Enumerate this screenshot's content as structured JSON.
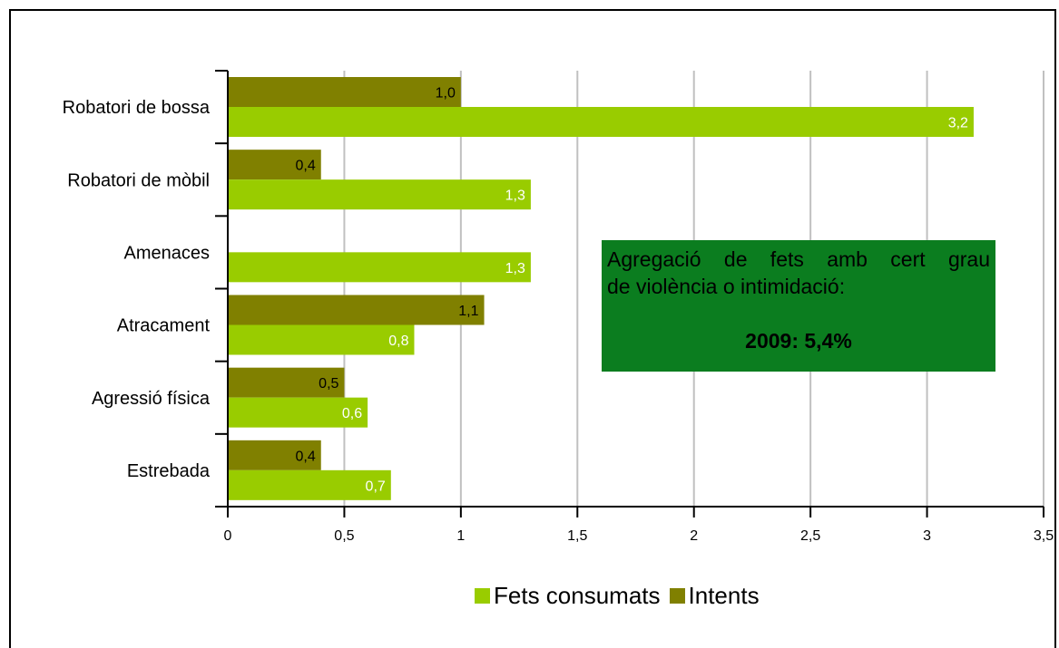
{
  "chart_data": {
    "type": "bar",
    "orientation": "horizontal",
    "categories": [
      "Robatori de bossa",
      "Robatori de mòbil",
      "Amenaces",
      "Atracament",
      "Agressió física",
      "Estrebada"
    ],
    "series": [
      {
        "name": "Intents",
        "color": "#808000",
        "values": [
          1.0,
          0.4,
          null,
          1.1,
          0.5,
          0.4
        ],
        "labels": [
          "1,0",
          "0,4",
          "",
          "1,1",
          "0,5",
          "0,4"
        ]
      },
      {
        "name": "Fets consumats",
        "color": "#99cc00",
        "values": [
          3.2,
          1.3,
          1.3,
          0.8,
          0.6,
          0.7
        ],
        "labels": [
          "3,2",
          "1,3",
          "1,3",
          "0,8",
          "0,6",
          "0,7"
        ]
      }
    ],
    "xlim": [
      0,
      3.5
    ],
    "xticks": [
      0,
      0.5,
      1,
      1.5,
      2,
      2.5,
      3,
      3.5
    ],
    "xtick_labels": [
      "0",
      "0,5",
      "1",
      "1,5",
      "2",
      "2,5",
      "3",
      "3,5"
    ],
    "grid": "vertical",
    "legend": "bottom-center",
    "legend_order": [
      "Fets consumats",
      "Intents"
    ]
  },
  "callout": {
    "line1": "Agregació de fets amb cert grau",
    "line2": "de violència o intimidació:",
    "line3": "2009: 5,4%",
    "color": "#0b7d1f"
  }
}
